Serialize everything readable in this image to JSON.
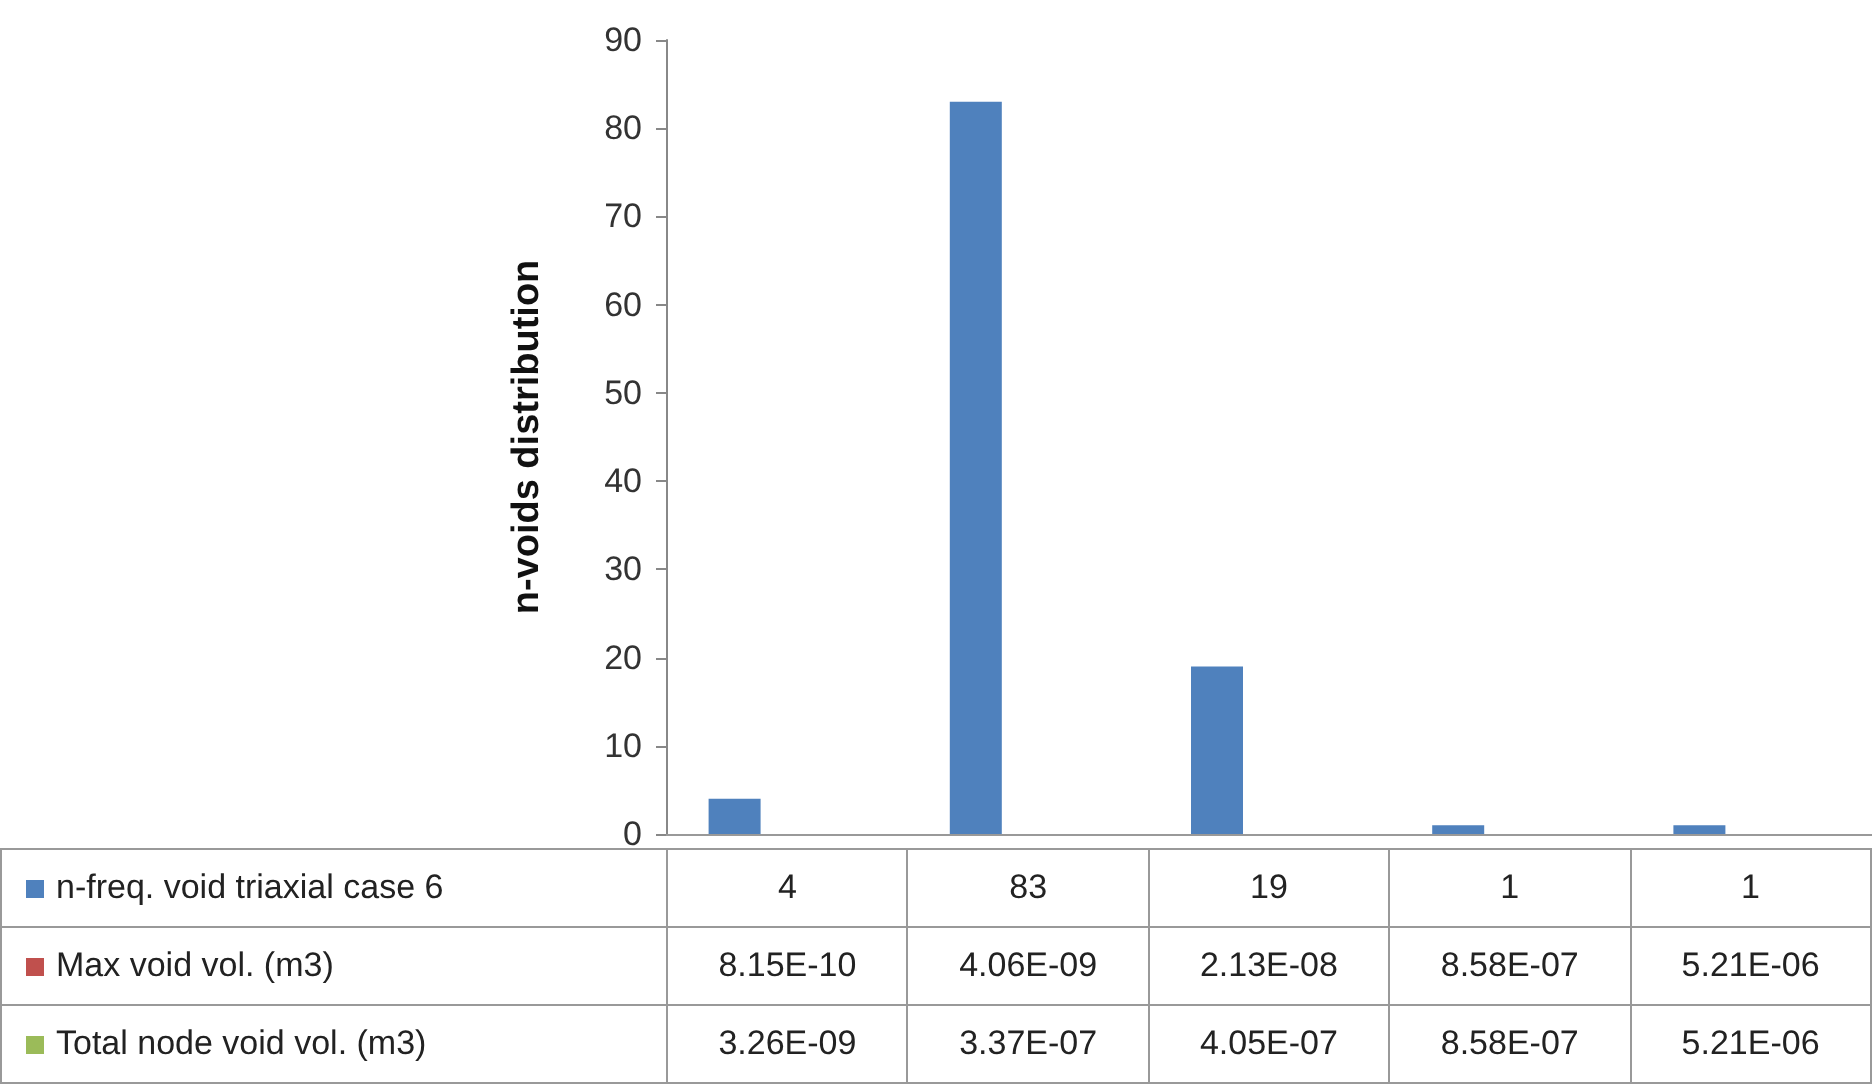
{
  "chart_data": {
    "type": "bar",
    "ylabel": "n-voids distribution",
    "categories": [
      null,
      null,
      null,
      null,
      null
    ],
    "series": [
      {
        "name": "n-freq. void triaxial case 6",
        "color": "#4f81bd",
        "values": [
          4,
          83,
          19,
          1,
          1
        ],
        "value_labels": [
          "4",
          "83",
          "19",
          "1",
          "1"
        ]
      },
      {
        "name": "Max void vol. (m3)",
        "color": "#c0504d",
        "values": [
          8.15e-10,
          4.06e-09,
          2.13e-08,
          8.58e-07,
          5.21e-06
        ],
        "value_labels": [
          "8.15E-10",
          "4.06E-09",
          "2.13E-08",
          "8.58E-07",
          "5.21E-06"
        ]
      },
      {
        "name": "Total node void vol. (m3)",
        "color": "#9bbb59",
        "values": [
          3.26e-09,
          3.37e-07,
          4.05e-07,
          8.58e-07,
          5.21e-06
        ],
        "value_labels": [
          "3.26E-09",
          "3.37E-07",
          "4.05E-07",
          "8.58E-07",
          "5.21E-06"
        ]
      }
    ],
    "ylim": [
      0,
      90
    ],
    "yticks": [
      0,
      10,
      20,
      30,
      40,
      50,
      60,
      70,
      80,
      90
    ],
    "grid": false,
    "legend": "bottom left"
  }
}
